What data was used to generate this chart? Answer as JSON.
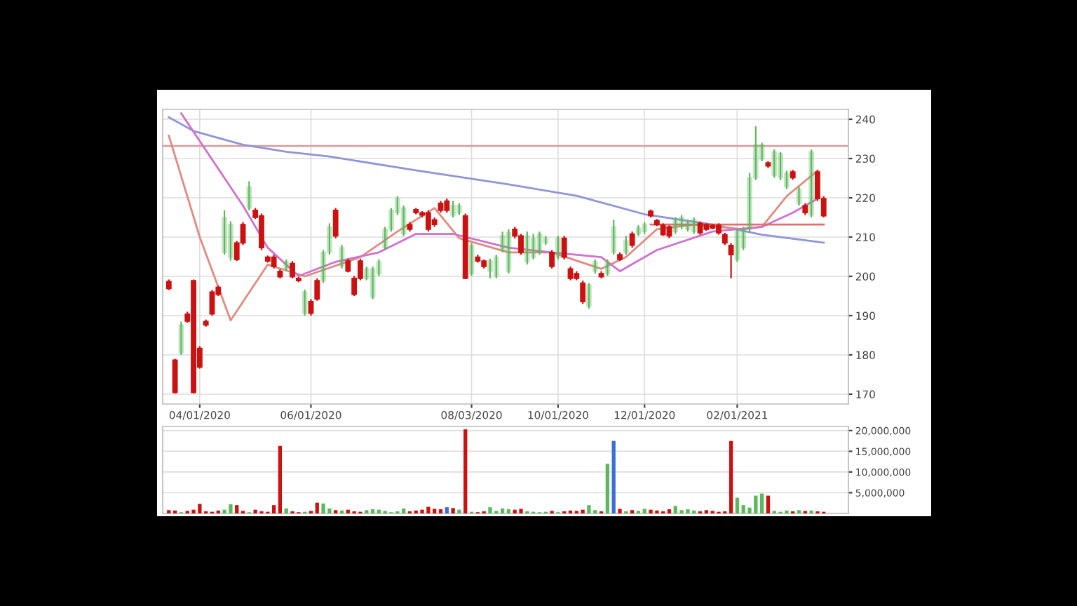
{
  "chart_data": [
    {
      "type": "candlestick",
      "categories": [
        null,
        null,
        null,
        null,
        null,
        "04/01/2020",
        null,
        null,
        null,
        null,
        null,
        null,
        null,
        null,
        null,
        null,
        null,
        null,
        null,
        null,
        null,
        null,
        null,
        "06/01/2020",
        null,
        null,
        null,
        null,
        null,
        null,
        null,
        null,
        null,
        null,
        null,
        null,
        null,
        null,
        null,
        null,
        null,
        null,
        null,
        null,
        null,
        null,
        null,
        null,
        null,
        "08/03/2020",
        null,
        null,
        null,
        null,
        null,
        null,
        null,
        null,
        null,
        null,
        null,
        null,
        null,
        "10/01/2020",
        null,
        null,
        null,
        null,
        null,
        null,
        null,
        null,
        null,
        null,
        null,
        null,
        null,
        "12/01/2020",
        null,
        null,
        null,
        null,
        null,
        null,
        null,
        null,
        null,
        null,
        null,
        null,
        null,
        null,
        "02/01/2021",
        null,
        null,
        null,
        null,
        null,
        null,
        null,
        null,
        null,
        null,
        null,
        null,
        null,
        null
      ],
      "ohlc": [
        [
          198.7,
          199.2,
          196.5,
          196.9
        ],
        [
          178.7,
          179.0,
          170.2,
          170.4
        ],
        [
          180.5,
          188.5,
          180.0,
          187.6
        ],
        [
          190.4,
          191.0,
          188.2,
          188.6
        ],
        [
          198.9,
          199.2,
          170.2,
          170.4
        ],
        [
          181.7,
          182.2,
          176.5,
          176.9
        ],
        [
          188.5,
          189.0,
          187.2,
          187.6
        ],
        [
          196.0,
          196.5,
          190.0,
          190.4
        ],
        [
          197.2,
          197.6,
          195.0,
          195.4
        ],
        [
          206.1,
          216.8,
          205.5,
          215.0
        ],
        [
          204.9,
          214.0,
          204.0,
          213.2
        ],
        [
          208.5,
          209.0,
          203.9,
          204.3
        ],
        [
          213.2,
          213.8,
          208.0,
          208.5
        ],
        [
          217.4,
          224.2,
          216.8,
          222.8
        ],
        [
          216.8,
          217.4,
          214.6,
          215.0
        ],
        [
          215.4,
          216.0,
          206.7,
          207.3
        ],
        [
          204.9,
          205.3,
          203.5,
          203.9
        ],
        [
          204.9,
          205.5,
          202.0,
          202.5
        ],
        [
          201.3,
          201.8,
          199.5,
          199.9
        ],
        [
          201.9,
          204.3,
          201.3,
          203.7
        ],
        [
          203.3,
          203.9,
          199.5,
          199.9
        ],
        [
          199.5,
          199.9,
          198.5,
          198.9
        ],
        [
          190.6,
          196.6,
          190.0,
          196.0
        ],
        [
          193.6,
          194.2,
          190.0,
          190.6
        ],
        [
          198.9,
          199.5,
          193.8,
          194.2
        ],
        [
          198.9,
          206.7,
          198.3,
          206.1
        ],
        [
          206.1,
          213.5,
          205.5,
          212.6
        ],
        [
          216.8,
          217.4,
          209.7,
          210.3
        ],
        [
          202.5,
          208.0,
          202.0,
          207.3
        ],
        [
          203.9,
          204.5,
          201.0,
          201.3
        ],
        [
          199.5,
          200.1,
          195.0,
          195.4
        ],
        [
          203.9,
          204.5,
          199.0,
          199.5
        ],
        [
          199.5,
          202.5,
          199.0,
          201.9
        ],
        [
          194.8,
          202.5,
          194.2,
          201.9
        ],
        [
          200.7,
          204.3,
          200.1,
          203.7
        ],
        [
          207.3,
          212.6,
          206.7,
          212.0
        ],
        [
          212.0,
          217.4,
          211.4,
          216.8
        ],
        [
          216.2,
          220.4,
          215.6,
          219.8
        ],
        [
          210.8,
          218.0,
          210.3,
          217.4
        ],
        [
          213.2,
          213.8,
          211.4,
          212.0
        ],
        [
          217.0,
          217.4,
          215.8,
          216.2
        ],
        [
          216.2,
          216.6,
          215.0,
          215.6
        ],
        [
          216.2,
          216.8,
          211.4,
          212.0
        ],
        [
          214.4,
          215.0,
          212.6,
          213.2
        ],
        [
          218.6,
          219.2,
          216.2,
          216.8
        ],
        [
          219.2,
          219.8,
          216.2,
          216.8
        ],
        [
          215.6,
          219.2,
          215.0,
          218.0
        ],
        [
          216.2,
          218.6,
          215.6,
          218.0
        ],
        [
          215.4,
          216.0,
          199.3,
          199.5
        ],
        [
          200.7,
          208.5,
          200.1,
          207.9
        ],
        [
          204.9,
          205.5,
          203.5,
          203.9
        ],
        [
          203.9,
          204.3,
          202.0,
          202.5
        ],
        [
          201.3,
          204.5,
          199.5,
          203.9
        ],
        [
          200.1,
          205.5,
          199.5,
          204.9
        ],
        [
          206.7,
          211.4,
          206.1,
          210.3
        ],
        [
          201.3,
          212.0,
          200.7,
          211.1
        ],
        [
          212.0,
          212.6,
          209.7,
          210.3
        ],
        [
          210.3,
          210.8,
          205.5,
          206.1
        ],
        [
          203.7,
          211.4,
          203.0,
          210.3
        ],
        [
          204.9,
          210.8,
          204.3,
          209.7
        ],
        [
          206.1,
          211.4,
          205.5,
          210.8
        ],
        [
          208.5,
          210.3,
          208.0,
          209.7
        ],
        [
          206.1,
          206.7,
          202.0,
          202.5
        ],
        [
          204.9,
          210.3,
          204.3,
          209.7
        ],
        [
          209.7,
          210.3,
          204.3,
          204.9
        ],
        [
          201.9,
          202.5,
          199.0,
          199.5
        ],
        [
          200.7,
          201.3,
          199.0,
          199.5
        ],
        [
          198.3,
          198.9,
          193.0,
          193.6
        ],
        [
          192.4,
          198.3,
          191.8,
          197.8
        ],
        [
          201.3,
          204.3,
          200.7,
          203.7
        ],
        [
          200.7,
          201.3,
          199.5,
          199.9
        ],
        [
          200.7,
          204.3,
          200.1,
          203.7
        ],
        [
          206.1,
          214.4,
          205.5,
          212.6
        ],
        [
          205.5,
          206.1,
          203.9,
          204.3
        ],
        [
          206.1,
          210.3,
          205.5,
          209.1
        ],
        [
          210.8,
          211.4,
          207.3,
          207.9
        ],
        [
          210.8,
          213.0,
          210.3,
          212.3
        ],
        [
          211.4,
          213.8,
          210.8,
          213.2
        ],
        [
          216.6,
          217.0,
          215.0,
          215.4
        ],
        [
          214.2,
          214.6,
          212.8,
          213.2
        ],
        [
          213.0,
          213.5,
          210.3,
          210.6
        ],
        [
          212.6,
          213.0,
          209.7,
          210.3
        ],
        [
          211.4,
          215.0,
          210.8,
          214.4
        ],
        [
          212.6,
          215.6,
          212.0,
          215.0
        ],
        [
          212.0,
          214.4,
          211.4,
          213.8
        ],
        [
          211.4,
          215.0,
          210.8,
          214.4
        ],
        [
          213.5,
          214.0,
          210.6,
          211.1
        ],
        [
          213.2,
          213.5,
          211.6,
          212.0
        ],
        [
          213.0,
          213.3,
          212.0,
          212.3
        ],
        [
          213.0,
          213.5,
          210.6,
          211.1
        ],
        [
          210.6,
          211.1,
          208.0,
          208.5
        ],
        [
          207.9,
          208.5,
          199.5,
          205.5
        ],
        [
          204.3,
          212.0,
          203.7,
          211.4
        ],
        [
          207.3,
          212.6,
          206.7,
          212.0
        ],
        [
          212.0,
          226.3,
          211.4,
          225.1
        ],
        [
          225.1,
          238.2,
          224.5,
          233.5
        ],
        [
          229.9,
          234.0,
          229.3,
          233.5
        ],
        [
          228.9,
          229.3,
          227.6,
          228.1
        ],
        [
          225.7,
          232.3,
          225.1,
          231.7
        ],
        [
          225.1,
          231.7,
          224.5,
          231.3
        ],
        [
          222.8,
          226.9,
          222.2,
          226.3
        ],
        [
          226.6,
          227.1,
          224.6,
          225.1
        ],
        [
          218.6,
          222.8,
          218.0,
          222.2
        ],
        [
          218.0,
          218.6,
          215.6,
          216.2
        ],
        [
          215.6,
          232.3,
          215.0,
          231.7
        ],
        [
          226.6,
          227.1,
          219.2,
          219.8
        ],
        [
          219.8,
          220.4,
          215.0,
          215.4
        ]
      ],
      "colors": [
        "#cc1111",
        "#cc1111",
        "#5cb85c",
        "#cc1111",
        "#cc1111",
        "#cc1111",
        "#cc1111",
        "#cc1111",
        "#cc1111",
        "#5cb85c",
        "#5cb85c",
        "#cc1111",
        "#cc1111",
        "#5cb85c",
        "#cc1111",
        "#cc1111",
        "#cc1111",
        "#cc1111",
        "#cc1111",
        "#5cb85c",
        "#cc1111",
        "#cc1111",
        "#5cb85c",
        "#cc1111",
        "#cc1111",
        "#5cb85c",
        "#5cb85c",
        "#cc1111",
        "#5cb85c",
        "#cc1111",
        "#cc1111",
        "#cc1111",
        "#5cb85c",
        "#5cb85c",
        "#5cb85c",
        "#5cb85c",
        "#5cb85c",
        "#5cb85c",
        "#5cb85c",
        "#cc1111",
        "#cc1111",
        "#cc1111",
        "#cc1111",
        "#cc1111",
        "#cc1111",
        "#cc1111",
        "#5cb85c",
        "#5cb85c",
        "#cc1111",
        "#5cb85c",
        "#cc1111",
        "#cc1111",
        "#5cb85c",
        "#5cb85c",
        "#5cb85c",
        "#5cb85c",
        "#cc1111",
        "#cc1111",
        "#5cb85c",
        "#5cb85c",
        "#5cb85c",
        "#5cb85c",
        "#cc1111",
        "#5cb85c",
        "#cc1111",
        "#cc1111",
        "#cc1111",
        "#cc1111",
        "#5cb85c",
        "#5cb85c",
        "#cc1111",
        "#5cb85c",
        "#5cb85c",
        "#cc1111",
        "#5cb85c",
        "#cc1111",
        "#5cb85c",
        "#5cb85c",
        "#cc1111",
        "#cc1111",
        "#cc1111",
        "#cc1111",
        "#5cb85c",
        "#5cb85c",
        "#5cb85c",
        "#5cb85c",
        "#cc1111",
        "#cc1111",
        "#cc1111",
        "#cc1111",
        "#cc1111",
        "#cc1111",
        "#5cb85c",
        "#5cb85c",
        "#5cb85c",
        "#5cb85c",
        "#5cb85c",
        "#cc1111",
        "#5cb85c",
        "#5cb85c",
        "#5cb85c",
        "#cc1111",
        "#5cb85c",
        "#cc1111",
        "#5cb85c",
        "#cc1111",
        "#cc1111"
      ],
      "series": [
        {
          "type": "line",
          "color": "#8f95d6",
          "values": [
            240.5,
            null,
            null,
            null,
            237,
            null,
            null,
            null,
            null,
            null,
            null,
            null,
            233.5,
            null,
            null,
            null,
            null,
            null,
            null,
            231.7,
            null,
            null,
            null,
            null,
            null,
            null,
            230.5,
            null,
            null,
            null,
            null,
            null,
            null,
            null,
            null,
            null,
            null,
            null,
            null,
            null,
            227,
            null,
            null,
            null,
            null,
            null,
            null,
            null,
            null,
            null,
            null,
            null,
            null,
            null,
            null,
            223.4,
            null,
            null,
            null,
            null,
            null,
            null,
            null,
            null,
            null,
            null,
            220.5,
            null,
            null,
            null,
            null,
            null,
            null,
            null,
            null,
            null,
            null,
            215.8,
            null,
            null,
            null,
            null,
            null,
            null,
            null,
            null,
            null,
            null,
            213.2,
            null,
            null,
            null,
            null,
            null,
            null,
            null,
            210.6,
            null,
            null,
            null,
            null,
            null,
            null,
            null,
            null,
            null,
            208.6
          ]
        },
        {
          "type": "line",
          "color": "#e08a80",
          "values": [
            235.8,
            null,
            null,
            null,
            null,
            210,
            null,
            null,
            null,
            null,
            188.8,
            null,
            null,
            null,
            null,
            null,
            203,
            null,
            null,
            null,
            null,
            null,
            200,
            null,
            null,
            null,
            null,
            null,
            null,
            null,
            null,
            204.9,
            null,
            null,
            null,
            null,
            null,
            211.4,
            null,
            null,
            null,
            null,
            null,
            217.4,
            null,
            null,
            null,
            209.7,
            null,
            null,
            null,
            null,
            null,
            null,
            null,
            206.1,
            null,
            null,
            null,
            null,
            null,
            null,
            206.1,
            null,
            null,
            null,
            null,
            null,
            null,
            null,
            201.9,
            null,
            null,
            null,
            204.9,
            null,
            null,
            null,
            null,
            212,
            null,
            null,
            null,
            null,
            null,
            213.2,
            null,
            null,
            null,
            null,
            null,
            null,
            null,
            212,
            null,
            null,
            212.6,
            null,
            null,
            null,
            220.4,
            null,
            null,
            null,
            null,
            226.9,
            null
          ]
        },
        {
          "type": "line",
          "color": "#d070d0",
          "values": [
            null,
            null,
            241.5,
            null,
            null,
            null,
            null,
            null,
            null,
            null,
            null,
            null,
            218,
            null,
            null,
            null,
            207.3,
            null,
            null,
            null,
            null,
            200.1,
            null,
            null,
            null,
            null,
            null,
            203.7,
            null,
            null,
            null,
            null,
            null,
            null,
            206.1,
            null,
            null,
            null,
            null,
            null,
            210.8,
            null,
            null,
            null,
            null,
            null,
            210.8,
            null,
            null,
            null,
            null,
            null,
            null,
            null,
            null,
            207.3,
            null,
            null,
            null,
            null,
            null,
            null,
            206.1,
            null,
            null,
            null,
            null,
            null,
            null,
            null,
            204.9,
            null,
            null,
            201.3,
            null,
            null,
            null,
            null,
            null,
            206.7,
            null,
            null,
            null,
            null,
            null,
            null,
            null,
            null,
            211.4,
            null,
            null,
            null,
            null,
            null,
            null,
            null,
            212.6,
            null,
            null,
            null,
            null,
            216.2,
            null,
            null,
            null,
            219.8,
            null
          ]
        },
        {
          "type": "line",
          "color": "#e07070",
          "values": [
            null,
            null,
            null,
            null,
            null,
            null,
            null,
            null,
            null,
            null,
            null,
            null,
            null,
            null,
            null,
            null,
            null,
            null,
            null,
            null,
            null,
            null,
            null,
            null,
            null,
            null,
            null,
            null,
            null,
            null,
            null,
            null,
            null,
            null,
            null,
            null,
            null,
            null,
            null,
            null,
            null,
            null,
            null,
            null,
            null,
            null,
            null,
            null,
            null,
            null,
            null,
            null,
            null,
            null,
            null,
            null,
            null,
            null,
            null,
            null,
            null,
            null,
            null,
            null,
            null,
            null,
            null,
            null,
            null,
            null,
            null,
            null,
            null,
            null,
            null,
            null,
            null,
            null,
            213.2,
            null,
            null,
            null,
            null,
            null,
            null,
            null,
            null,
            null,
            null,
            null,
            null,
            null,
            null,
            null,
            null,
            null,
            null,
            null,
            null,
            null,
            null,
            null,
            null,
            null,
            null,
            null,
            213.2
          ]
        }
      ],
      "ref_lines": [
        {
          "axis": "y",
          "value": 233.2,
          "color": "#d9a0a0"
        }
      ],
      "ylim": [
        167.5,
        242.5
      ],
      "yticks": [
        170,
        180,
        190,
        200,
        210,
        220,
        230,
        240
      ],
      "grid": true
    },
    {
      "type": "bar",
      "categories": [
        null,
        null,
        null,
        null,
        null,
        null,
        null,
        null,
        null,
        null,
        null,
        null,
        null,
        null,
        null,
        null,
        null,
        null,
        null,
        null,
        null,
        null,
        null,
        null,
        null,
        null,
        null,
        null,
        null,
        null,
        null,
        null,
        null,
        null,
        null,
        null,
        null,
        null,
        null,
        null,
        null,
        null,
        null,
        null,
        null,
        null,
        null,
        null,
        null,
        null,
        null,
        null,
        null,
        null,
        null,
        null,
        null,
        null,
        null,
        null,
        null,
        null,
        null,
        null,
        null,
        null,
        null,
        null,
        null,
        null,
        null,
        null,
        null,
        null,
        null,
        null,
        null,
        null,
        null,
        null,
        null,
        null,
        null,
        null,
        null,
        null,
        null,
        null,
        null,
        null,
        null,
        null,
        null,
        null,
        null,
        null,
        null,
        null,
        null,
        null,
        null,
        null,
        null,
        null,
        null,
        null,
        null
      ],
      "values": [
        800000,
        700000,
        300000,
        600000,
        900000,
        2300000,
        500000,
        400000,
        700000,
        900000,
        2200000,
        2000000,
        600000,
        300000,
        900000,
        500000,
        400000,
        2000000,
        16300000,
        1200000,
        500000,
        300000,
        400000,
        600000,
        2600000,
        2400000,
        1200000,
        800000,
        700000,
        900000,
        500000,
        400000,
        800000,
        1000000,
        900000,
        600000,
        300000,
        500000,
        1200000,
        500000,
        700000,
        900000,
        1600000,
        1100000,
        1000000,
        1500000,
        1300000,
        900000,
        20300000,
        400000,
        300000,
        500000,
        1500000,
        600000,
        1200000,
        1000000,
        900000,
        1100000,
        500000,
        400000,
        300000,
        400000,
        600000,
        300000,
        500000,
        700000,
        600000,
        900000,
        2000000,
        800000,
        500000,
        12000000,
        17500000,
        1100000,
        500000,
        800000,
        600000,
        1100000,
        900000,
        700000,
        500000,
        1000000,
        1800000,
        800000,
        1000000,
        700000,
        500000,
        800000,
        600000,
        400000,
        500000,
        17500000,
        3800000,
        2000000,
        1400000,
        4300000,
        4800000,
        4300000,
        600000,
        400000,
        700000,
        500000,
        800000,
        600000,
        700000,
        500000,
        400000
      ],
      "colors": [
        "#cc1111",
        "#cc1111",
        "#5cb85c",
        "#cc1111",
        "#cc1111",
        "#cc1111",
        "#cc1111",
        "#cc1111",
        "#cc1111",
        "#5cb85c",
        "#5cb85c",
        "#cc1111",
        "#cc1111",
        "#5cb85c",
        "#cc1111",
        "#cc1111",
        "#cc1111",
        "#cc1111",
        "#cc1111",
        "#5cb85c",
        "#cc1111",
        "#cc1111",
        "#5cb85c",
        "#cc1111",
        "#cc1111",
        "#5cb85c",
        "#5cb85c",
        "#cc1111",
        "#5cb85c",
        "#cc1111",
        "#cc1111",
        "#cc1111",
        "#5cb85c",
        "#5cb85c",
        "#5cb85c",
        "#5cb85c",
        "#5cb85c",
        "#5cb85c",
        "#5cb85c",
        "#cc1111",
        "#cc1111",
        "#cc1111",
        "#cc1111",
        "#cc1111",
        "#cc1111",
        "#3a6fd8",
        "#cc1111",
        "#5cb85c",
        "#cc1111",
        "#5cb85c",
        "#cc1111",
        "#cc1111",
        "#5cb85c",
        "#5cb85c",
        "#5cb85c",
        "#5cb85c",
        "#cc1111",
        "#cc1111",
        "#5cb85c",
        "#5cb85c",
        "#5cb85c",
        "#5cb85c",
        "#cc1111",
        "#5cb85c",
        "#cc1111",
        "#cc1111",
        "#cc1111",
        "#cc1111",
        "#5cb85c",
        "#5cb85c",
        "#cc1111",
        "#5cb85c",
        "#3a6fd8",
        "#cc1111",
        "#5cb85c",
        "#cc1111",
        "#5cb85c",
        "#5cb85c",
        "#cc1111",
        "#cc1111",
        "#cc1111",
        "#cc1111",
        "#5cb85c",
        "#5cb85c",
        "#5cb85c",
        "#5cb85c",
        "#cc1111",
        "#cc1111",
        "#cc1111",
        "#cc1111",
        "#cc1111",
        "#cc1111",
        "#5cb85c",
        "#5cb85c",
        "#5cb85c",
        "#5cb85c",
        "#5cb85c",
        "#cc1111",
        "#5cb85c",
        "#5cb85c",
        "#5cb85c",
        "#cc1111",
        "#5cb85c",
        "#cc1111",
        "#5cb85c",
        "#cc1111",
        "#cc1111"
      ],
      "ylim": [
        0,
        21000000
      ],
      "yticks": [
        {
          "value": 5000000,
          "label": "5,000,000"
        },
        {
          "value": 10000000,
          "label": "10,000,000"
        },
        {
          "value": 15000000,
          "label": "15,000,000"
        },
        {
          "value": 20000000,
          "label": "20,000,000"
        }
      ],
      "grid": true,
      "tick_labels": "y"
    }
  ]
}
